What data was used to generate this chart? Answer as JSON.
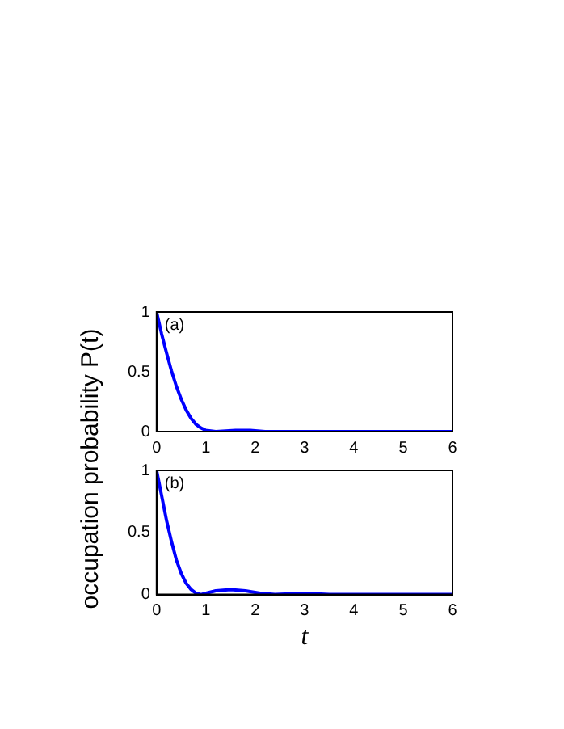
{
  "chart_data": [
    {
      "type": "line",
      "ylabel": "occupation probability P(t)",
      "annotations": [
        "(a)"
      ],
      "xlim": [
        0,
        6
      ],
      "ylim": [
        0,
        1
      ],
      "xticks": [
        0,
        1,
        2,
        3,
        4,
        5,
        6
      ],
      "yticks": [
        0,
        0.5,
        1
      ],
      "grid": false,
      "legend": false,
      "marker": "none",
      "line_style": "solid",
      "series": [
        {
          "color": "#0000ff",
          "x": [
            0,
            0.1,
            0.2,
            0.3,
            0.4,
            0.5,
            0.6,
            0.7,
            0.8,
            0.9,
            1.0,
            1.2,
            1.6,
            1.9,
            2.2,
            2.5,
            3,
            4,
            5,
            6
          ],
          "values": [
            1,
            0.82,
            0.66,
            0.51,
            0.38,
            0.27,
            0.18,
            0.11,
            0.06,
            0.03,
            0.01,
            0,
            0.01,
            0.01,
            0,
            0,
            0,
            0,
            0,
            0
          ]
        }
      ]
    },
    {
      "type": "line",
      "xlabel": "t",
      "annotations": [
        "(b)"
      ],
      "xlim": [
        0,
        6
      ],
      "ylim": [
        0,
        1
      ],
      "xticks": [
        0,
        1,
        2,
        3,
        4,
        5,
        6
      ],
      "yticks": [
        0,
        0.5,
        1
      ],
      "grid": false,
      "legend": false,
      "marker": "none",
      "line_style": "solid",
      "series": [
        {
          "color": "#0000ff",
          "x": [
            0,
            0.1,
            0.2,
            0.3,
            0.4,
            0.5,
            0.6,
            0.7,
            0.8,
            0.9,
            1.0,
            1.2,
            1.5,
            1.8,
            2.1,
            2.4,
            3,
            3.5,
            4,
            4.6,
            5,
            6
          ],
          "values": [
            1,
            0.8,
            0.6,
            0.43,
            0.28,
            0.17,
            0.09,
            0.04,
            0.01,
            0,
            0.01,
            0.03,
            0.04,
            0.03,
            0.01,
            0,
            0.01,
            0,
            0,
            0,
            0,
            0
          ]
        }
      ]
    }
  ]
}
